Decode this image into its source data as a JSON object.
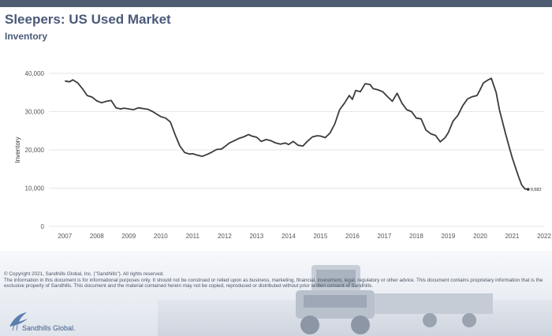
{
  "header": {
    "title": "Sleepers:  US Used Market",
    "subtitle": "Inventory"
  },
  "chart_data": {
    "type": "line",
    "title": "",
    "xlabel": "",
    "ylabel": "Inventory",
    "xlim": [
      2006.5,
      2022
    ],
    "ylim": [
      0,
      40000
    ],
    "grid": "horizontal",
    "line_color": "#3b3b3b",
    "y_ticks": [
      {
        "value": 0,
        "label": "0"
      },
      {
        "value": 10000,
        "label": "10,000"
      },
      {
        "value": 20000,
        "label": "20,000"
      },
      {
        "value": 30000,
        "label": "30,000"
      },
      {
        "value": 40000,
        "label": "40,000"
      }
    ],
    "x_ticks": [
      {
        "value": 2007,
        "label": "2007"
      },
      {
        "value": 2008,
        "label": "2008"
      },
      {
        "value": 2009,
        "label": "2009"
      },
      {
        "value": 2010,
        "label": "2010"
      },
      {
        "value": 2011,
        "label": "2011"
      },
      {
        "value": 2012,
        "label": "2012"
      },
      {
        "value": 2013,
        "label": "2013"
      },
      {
        "value": 2014,
        "label": "2014"
      },
      {
        "value": 2015,
        "label": "2015"
      },
      {
        "value": 2016,
        "label": "2016"
      },
      {
        "value": 2017,
        "label": "2017"
      },
      {
        "value": 2018,
        "label": "2018"
      },
      {
        "value": 2019,
        "label": "2019"
      },
      {
        "value": 2020,
        "label": "2020"
      },
      {
        "value": 2021,
        "label": "2021"
      },
      {
        "value": 2022,
        "label": "2022"
      }
    ],
    "series": [
      {
        "x": [
          2007.0,
          2007.15,
          2007.25,
          2007.4,
          2007.55,
          2007.7,
          2007.85,
          2008.0,
          2008.15,
          2008.3,
          2008.45,
          2008.6,
          2008.75,
          2008.85,
          2009.0,
          2009.15,
          2009.3,
          2009.45,
          2009.6,
          2009.75,
          2009.9,
          2010.0,
          2010.15,
          2010.3,
          2010.45,
          2010.6,
          2010.75,
          2010.9,
          2011.0,
          2011.15,
          2011.3,
          2011.45,
          2011.6,
          2011.75,
          2011.9,
          2012.0,
          2012.15,
          2012.3,
          2012.45,
          2012.6,
          2012.75,
          2012.85,
          2013.0,
          2013.15,
          2013.3,
          2013.45,
          2013.6,
          2013.75,
          2013.9,
          2014.0,
          2014.15,
          2014.3,
          2014.45,
          2014.6,
          2014.75,
          2014.9,
          2015.0,
          2015.15,
          2015.3,
          2015.45,
          2015.6,
          2015.75,
          2015.9,
          2016.0,
          2016.1,
          2016.25,
          2016.4,
          2016.55,
          2016.65,
          2016.8,
          2016.95,
          2017.1,
          2017.25,
          2017.4,
          2017.55,
          2017.7,
          2017.85,
          2018.0,
          2018.15,
          2018.3,
          2018.45,
          2018.6,
          2018.75,
          2018.9,
          2019.0,
          2019.15,
          2019.3,
          2019.45,
          2019.6,
          2019.75,
          2019.9,
          2020.0,
          2020.1,
          2020.25,
          2020.35,
          2020.5,
          2020.6,
          2020.7,
          2020.8,
          2020.9,
          2021.0,
          2021.1,
          2021.2,
          2021.3,
          2021.4,
          2021.5
        ],
        "y": [
          38000,
          37800,
          38300,
          37500,
          36000,
          34200,
          33800,
          32800,
          32300,
          32700,
          32900,
          31000,
          30700,
          30900,
          30700,
          30500,
          31000,
          30800,
          30600,
          30000,
          29200,
          28700,
          28300,
          27300,
          24000,
          21000,
          19300,
          18900,
          19000,
          18600,
          18300,
          18800,
          19400,
          20100,
          20200,
          20800,
          21800,
          22400,
          23000,
          23400,
          24000,
          23600,
          23300,
          22200,
          22700,
          22400,
          21800,
          21500,
          21800,
          21400,
          22200,
          21200,
          21000,
          22300,
          23400,
          23700,
          23600,
          23200,
          24400,
          26800,
          30500,
          32200,
          34200,
          33200,
          35500,
          35200,
          37300,
          37100,
          36000,
          35700,
          35200,
          33900,
          32700,
          34800,
          32200,
          30500,
          30000,
          28300,
          28100,
          25200,
          24200,
          23800,
          22100,
          23200,
          24500,
          27500,
          29000,
          31500,
          33300,
          33900,
          34200,
          35800,
          37500,
          38300,
          38700,
          35000,
          30500,
          27300,
          24000,
          21000,
          18000,
          15500,
          13000,
          10800,
          9800,
          9682
        ]
      }
    ],
    "annotations": [
      {
        "x": 2021.5,
        "y": 9682,
        "text": "9,682"
      }
    ]
  },
  "footer": {
    "copyright": "© Copyright 2021, Sandhills Global, Inc. (\"Sandhills\"). All rights reserved.",
    "disclaimer": "The information in this document is for informational purposes only.  It should not be construed or relied upon as business, marketing, financial, investment, legal, regulatory or other advice. This document contains proprietary information that is the exclusive property of Sandhills. This document and the material contained herein may not be copied, reproduced or distributed without prior written consent of Sandhills.",
    "logo_text": "Sandhills Global."
  }
}
